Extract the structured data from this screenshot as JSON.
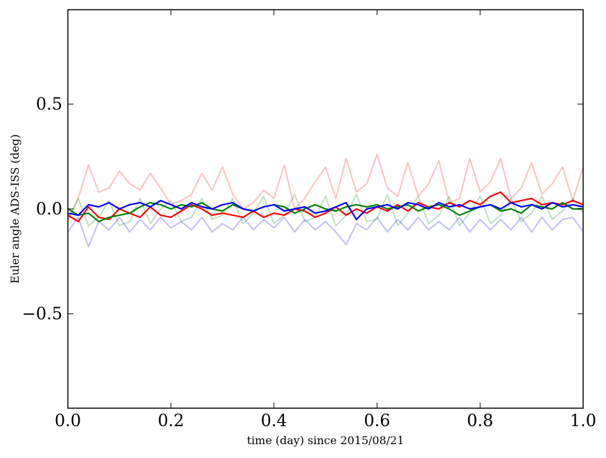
{
  "chart_data": {
    "type": "line",
    "title": "",
    "xlabel": "time (day) since 2015/08/21",
    "ylabel": "Euler angle ADS-ISS (deg)",
    "xlim": [
      0.0,
      1.0
    ],
    "ylim": [
      -0.95,
      0.95
    ],
    "x_ticks": [
      0.0,
      0.2,
      0.4,
      0.6,
      0.8,
      1.0
    ],
    "x_tick_labels": [
      "0.0",
      "0.2",
      "0.4",
      "0.6",
      "0.8",
      "1.0"
    ],
    "y_ticks": [
      0.5,
      0.0,
      -0.5
    ],
    "y_tick_labels": [
      "0.5",
      "0.0",
      "−0.5"
    ],
    "grid": false,
    "legend": "none",
    "x": [
      0.0,
      0.02,
      0.04,
      0.06,
      0.08,
      0.1,
      0.12,
      0.14,
      0.16,
      0.18,
      0.2,
      0.22,
      0.24,
      0.26,
      0.28,
      0.3,
      0.32,
      0.34,
      0.36,
      0.38,
      0.4,
      0.42,
      0.44,
      0.46,
      0.48,
      0.5,
      0.52,
      0.54,
      0.56,
      0.58,
      0.6,
      0.62,
      0.64,
      0.66,
      0.68,
      0.7,
      0.72,
      0.74,
      0.76,
      0.78,
      0.8,
      0.82,
      0.84,
      0.86,
      0.88,
      0.9,
      0.92,
      0.94,
      0.96,
      0.98,
      1.0
    ],
    "series": [
      {
        "color": "#ff0000",
        "opacity": 0.25,
        "values": [
          -0.05,
          0.05,
          0.21,
          0.08,
          0.1,
          0.18,
          0.12,
          0.09,
          0.17,
          0.1,
          0.02,
          0.04,
          0.07,
          0.17,
          0.09,
          0.2,
          0.07,
          0.0,
          0.03,
          0.09,
          0.05,
          0.21,
          0.0,
          0.05,
          0.13,
          0.2,
          0.05,
          0.24,
          0.08,
          0.12,
          0.26,
          0.1,
          0.06,
          0.22,
          0.06,
          0.12,
          0.23,
          0.03,
          0.05,
          0.24,
          0.08,
          0.13,
          0.24,
          0.05,
          0.1,
          0.22,
          0.07,
          0.12,
          0.2,
          0.04,
          0.2
        ]
      },
      {
        "color": "#008000",
        "opacity": 0.25,
        "values": [
          -0.06,
          0.05,
          -0.08,
          -0.04,
          0.04,
          -0.08,
          -0.06,
          0.05,
          -0.07,
          0.0,
          0.04,
          -0.06,
          -0.04,
          0.05,
          -0.05,
          -0.03,
          0.05,
          -0.07,
          -0.02,
          0.06,
          -0.07,
          -0.03,
          0.07,
          -0.06,
          -0.04,
          0.06,
          -0.08,
          -0.03,
          0.07,
          -0.06,
          -0.05,
          0.07,
          -0.08,
          -0.02,
          0.06,
          -0.07,
          -0.03,
          0.06,
          -0.08,
          -0.02,
          0.06,
          -0.07,
          -0.03,
          0.05,
          -0.06,
          -0.02,
          0.06,
          -0.05,
          -0.01,
          0.05,
          -0.02
        ]
      },
      {
        "color": "#0000ff",
        "opacity": 0.25,
        "values": [
          -0.11,
          -0.04,
          -0.18,
          -0.06,
          -0.1,
          -0.04,
          -0.11,
          -0.05,
          -0.1,
          -0.04,
          -0.09,
          -0.06,
          -0.1,
          -0.04,
          -0.11,
          -0.07,
          -0.1,
          -0.04,
          -0.1,
          -0.05,
          -0.09,
          -0.04,
          -0.11,
          -0.05,
          -0.1,
          -0.06,
          -0.11,
          -0.17,
          -0.07,
          -0.1,
          -0.04,
          -0.11,
          -0.05,
          -0.1,
          -0.04,
          -0.1,
          -0.06,
          -0.1,
          -0.04,
          -0.11,
          -0.05,
          -0.1,
          -0.05,
          -0.1,
          -0.04,
          -0.11,
          -0.04,
          -0.1,
          -0.05,
          -0.04,
          -0.11
        ]
      },
      {
        "color": "#ff0000",
        "opacity": 1.0,
        "values": [
          -0.03,
          -0.06,
          0.01,
          -0.04,
          -0.05,
          0.0,
          -0.02,
          -0.04,
          0.01,
          -0.03,
          -0.04,
          -0.01,
          0.02,
          0.0,
          -0.03,
          -0.02,
          -0.03,
          -0.04,
          -0.01,
          -0.04,
          -0.02,
          -0.03,
          0.0,
          -0.01,
          -0.04,
          -0.02,
          0.01,
          -0.03,
          0.0,
          -0.02,
          0.01,
          -0.01,
          0.02,
          -0.01,
          0.03,
          0.01,
          0.0,
          0.03,
          0.01,
          0.04,
          0.02,
          0.06,
          0.08,
          0.03,
          0.04,
          0.05,
          0.02,
          0.03,
          0.02,
          0.04,
          0.02
        ]
      },
      {
        "color": "#008000",
        "opacity": 1.0,
        "values": [
          0.0,
          -0.03,
          -0.02,
          -0.06,
          -0.04,
          -0.03,
          -0.02,
          0.01,
          0.03,
          0.02,
          0.0,
          0.02,
          0.01,
          0.03,
          0.0,
          -0.01,
          0.02,
          0.0,
          -0.01,
          0.01,
          0.02,
          0.01,
          -0.02,
          0.0,
          0.02,
          0.0,
          -0.01,
          0.01,
          0.02,
          0.01,
          0.02,
          0.0,
          0.01,
          0.02,
          -0.01,
          0.01,
          0.02,
          0.0,
          -0.03,
          -0.01,
          0.01,
          0.02,
          -0.01,
          0.0,
          -0.02,
          0.02,
          0.01,
          0.0,
          0.03,
          0.0,
          0.0
        ]
      },
      {
        "color": "#0000ff",
        "opacity": 1.0,
        "values": [
          -0.02,
          -0.03,
          0.02,
          0.01,
          0.03,
          0.0,
          0.02,
          0.03,
          0.01,
          0.04,
          0.02,
          0.0,
          0.03,
          0.01,
          0.0,
          0.02,
          0.03,
          0.0,
          -0.01,
          0.01,
          0.02,
          -0.01,
          0.0,
          0.01,
          -0.02,
          -0.01,
          0.01,
          0.03,
          -0.05,
          0.0,
          0.01,
          0.02,
          0.0,
          0.03,
          0.02,
          0.0,
          0.03,
          0.01,
          0.02,
          0.0,
          0.01,
          0.02,
          0.0,
          0.03,
          0.01,
          0.02,
          0.0,
          0.03,
          0.01,
          0.02,
          0.01
        ]
      }
    ]
  }
}
